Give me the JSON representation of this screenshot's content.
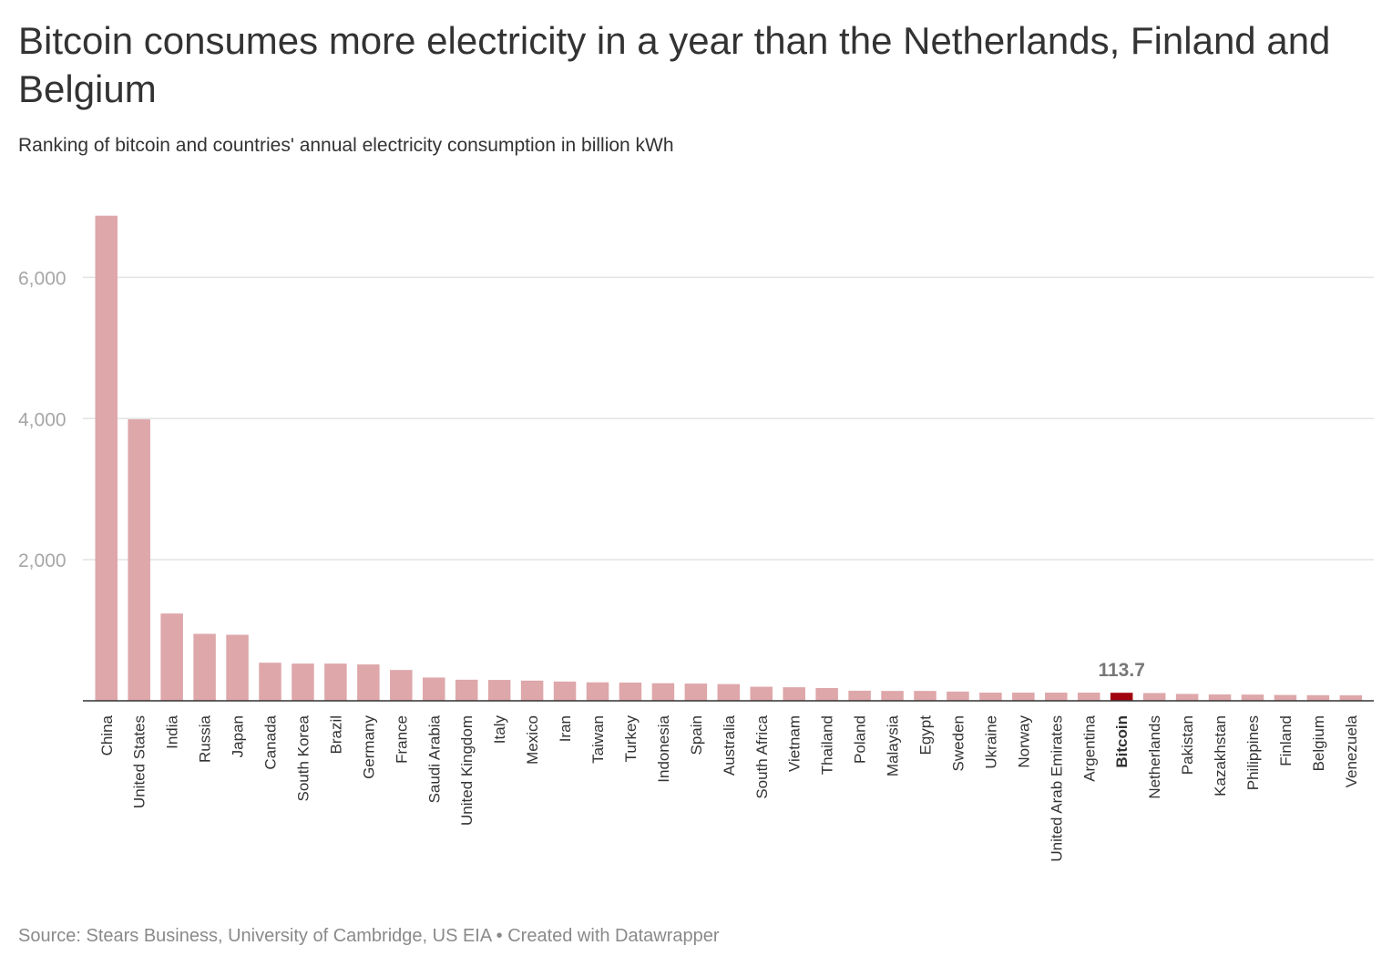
{
  "header": {
    "title": "Bitcoin consumes more electricity in a year than the Netherlands, Finland and Belgium",
    "subtitle": "Ranking of bitcoin and countries' annual electricity consumption in billion kWh"
  },
  "footer": {
    "source": "Source: Stears Business, University of Cambridge, US EIA • Created with Datawrapper"
  },
  "colors": {
    "bar": "#dea7aa",
    "highlight": "#a1040f",
    "grid": "#e3e3e3",
    "axis": "#333333",
    "tick_label": "#a6a6a6",
    "category_label": "#333333",
    "annotation": "#777777"
  },
  "chart_data": {
    "type": "bar",
    "title": "Bitcoin consumes more electricity in a year than the Netherlands, Finland and Belgium",
    "subtitle": "Ranking of bitcoin and countries' annual electricity consumption in billion kWh",
    "xlabel": "",
    "ylabel": "",
    "ylim": [
      0,
      7000
    ],
    "yticks": [
      2000,
      4000,
      6000
    ],
    "ytick_labels": [
      "2,000",
      "4,000",
      "6,000"
    ],
    "grid": true,
    "highlight": "Bitcoin",
    "annotation": {
      "category": "Bitcoin",
      "text": "113.7"
    },
    "categories": [
      "China",
      "United States",
      "India",
      "Russia",
      "Japan",
      "Canada",
      "South Korea",
      "Brazil",
      "Germany",
      "France",
      "Saudi Arabia",
      "United Kingdom",
      "Italy",
      "Mexico",
      "Iran",
      "Taiwan",
      "Turkey",
      "Indonesia",
      "Spain",
      "Australia",
      "South Africa",
      "Vietnam",
      "Thailand",
      "Poland",
      "Malaysia",
      "Egypt",
      "Sweden",
      "Ukraine",
      "Norway",
      "United Arab Emirates",
      "Argentina",
      "Bitcoin",
      "Netherlands",
      "Pakistan",
      "Kazakhstan",
      "Philippines",
      "Finland",
      "Belgium",
      "Venezuela"
    ],
    "values": [
      6875,
      3989,
      1237,
      949,
      936,
      540,
      527,
      527,
      515,
      437,
      330,
      299,
      296,
      286,
      273,
      262,
      258,
      249,
      244,
      237,
      199,
      192,
      181,
      143,
      140,
      140,
      131,
      116,
      116,
      116,
      116,
      113.7,
      110,
      98,
      90,
      88,
      83,
      80,
      78
    ]
  }
}
